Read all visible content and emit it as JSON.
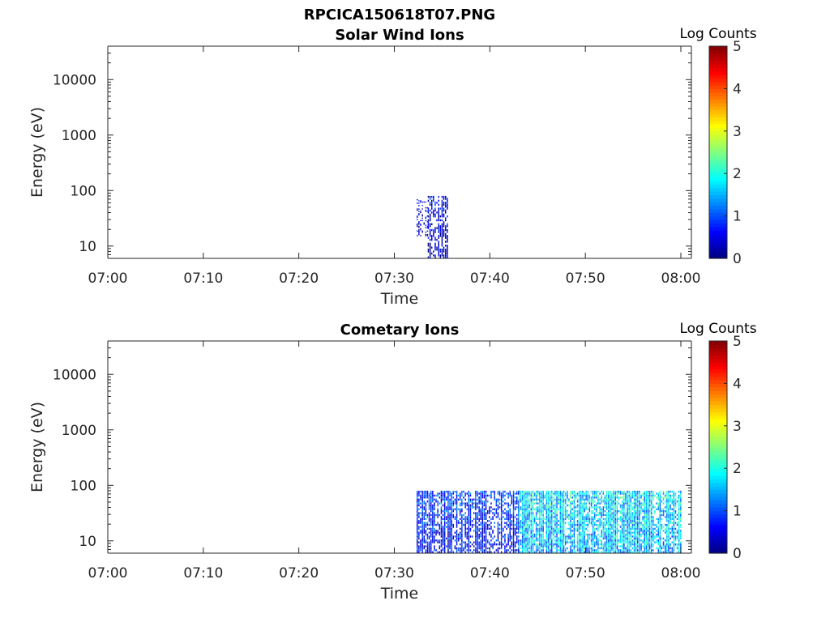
{
  "figure": {
    "title": "RPCICA150618T07.PNG"
  },
  "chart_data": [
    {
      "type": "heatmap",
      "title": "Solar Wind Ions",
      "xlabel": "Time",
      "ylabel": "Energy (eV)",
      "x_ticks": [
        "07:00",
        "07:10",
        "07:20",
        "07:30",
        "07:40",
        "07:50",
        "08:00"
      ],
      "y_ticks": [
        "10",
        "100",
        "1000",
        "10000"
      ],
      "y_scale": "log",
      "ylim": [
        6,
        40000
      ],
      "xlim": [
        "07:00",
        "08:00"
      ],
      "colorbar": {
        "label": "Log Counts",
        "range": [
          0,
          5
        ],
        "ticks": [
          "0",
          "1",
          "2",
          "3",
          "4",
          "5"
        ],
        "colormap": "jet"
      },
      "regions": [
        {
          "t_start": "07:32:20",
          "t_end": "07:33:30",
          "e_min": 15,
          "e_max": 70,
          "level": 0.2,
          "density": 0.35
        },
        {
          "t_start": "07:33:30",
          "t_end": "07:35:30",
          "e_min": 6,
          "e_max": 80,
          "level": 0.25,
          "density": 0.55
        }
      ]
    },
    {
      "type": "heatmap",
      "title": "Cometary Ions",
      "xlabel": "Time",
      "ylabel": "Energy (eV)",
      "x_ticks": [
        "07:00",
        "07:10",
        "07:20",
        "07:30",
        "07:40",
        "07:50",
        "08:00"
      ],
      "y_ticks": [
        "10",
        "100",
        "1000",
        "10000"
      ],
      "y_scale": "log",
      "ylim": [
        6,
        40000
      ],
      "xlim": [
        "07:00",
        "08:00"
      ],
      "colorbar": {
        "label": "Log Counts",
        "range": [
          0,
          5
        ],
        "ticks": [
          "0",
          "1",
          "2",
          "3",
          "4",
          "5"
        ],
        "colormap": "jet"
      },
      "regions": [
        {
          "t_start": "07:32:20",
          "t_end": "07:43:00",
          "e_min": 6,
          "e_max": 80,
          "level": 0.6,
          "density": 0.7
        },
        {
          "t_start": "07:43:00",
          "t_end": "08:00:00",
          "e_min": 6,
          "e_max": 80,
          "level": 1.5,
          "density": 0.85
        }
      ]
    }
  ]
}
